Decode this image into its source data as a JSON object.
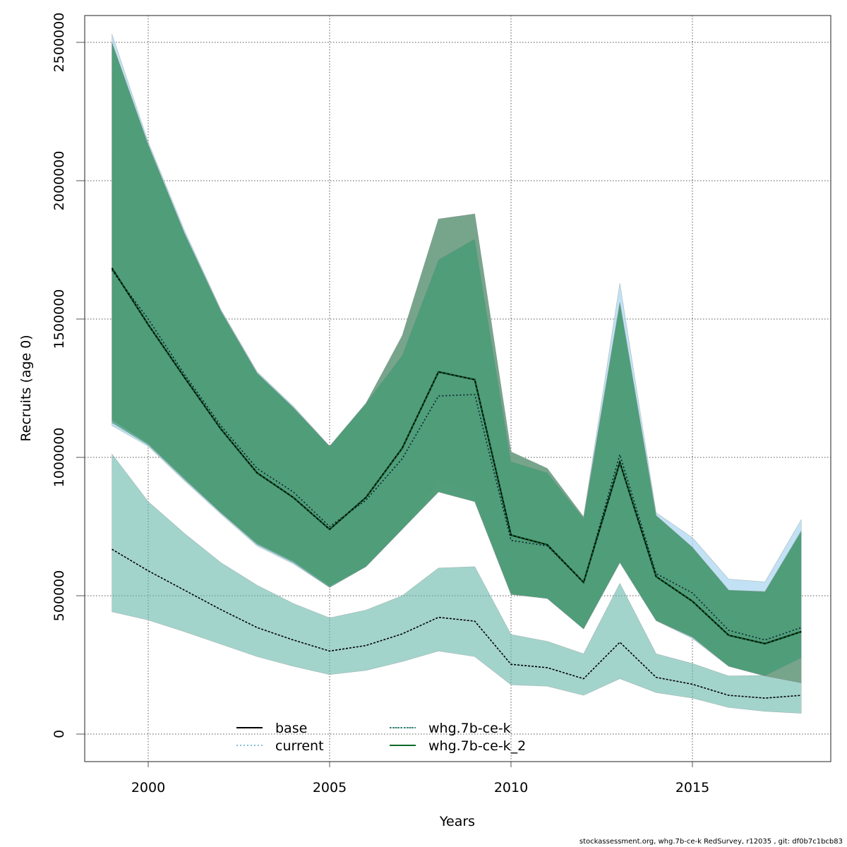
{
  "chart_data": {
    "type": "area",
    "title": "",
    "xlabel": "Years",
    "ylabel": "Recruits (age 0)",
    "xlim": [
      1998.2,
      2018.8
    ],
    "ylim": [
      -100000,
      2600000
    ],
    "grid": true,
    "x_ticks": [
      2000,
      2005,
      2010,
      2015
    ],
    "x_tick_labels": [
      "2000",
      "2005",
      "2010",
      "2015"
    ],
    "y_ticks": [
      0,
      500000,
      1000000,
      1500000,
      2000000,
      2500000
    ],
    "y_tick_labels": [
      "0",
      "500000",
      "1000000",
      "1500000",
      "2000000",
      "2500000"
    ],
    "x": [
      1999,
      2000,
      2001,
      2002,
      2003,
      2004,
      2005,
      2006,
      2007,
      2008,
      2009,
      2010,
      2011,
      2012,
      2013,
      2014,
      2015,
      2016,
      2017,
      2018
    ],
    "series": [
      {
        "name": "base",
        "line_style": "solid",
        "line_color": "#000000",
        "band_color": "#6a9a78",
        "values": [
          1684000,
          1480000,
          1289000,
          1103000,
          944000,
          855000,
          740000,
          855000,
          1033000,
          1309000,
          1281000,
          719000,
          684000,
          548000,
          982000,
          569000,
          480000,
          357000,
          327000,
          370000
        ],
        "upper": [
          2500000,
          2130000,
          1810000,
          1530000,
          1305000,
          1180000,
          1040000,
          1195000,
          1440000,
          1862000,
          1880000,
          1020000,
          960000,
          785000,
          1560000,
          790000,
          675000,
          520000,
          515000,
          730000
        ],
        "lower": [
          1135000,
          1050000,
          925000,
          800000,
          690000,
          625000,
          535000,
          605000,
          740000,
          875000,
          840000,
          505000,
          490000,
          380000,
          620000,
          410000,
          350000,
          245000,
          210000,
          185000
        ]
      },
      {
        "name": "current",
        "line_style": "dotted",
        "line_color": "#1a3a5a",
        "band_color": "#a8d4f0",
        "values": [
          1676000,
          1500000,
          1300000,
          1115000,
          960000,
          875000,
          750000,
          845000,
          995000,
          1222000,
          1227000,
          700000,
          680000,
          548000,
          1010000,
          580000,
          510000,
          375000,
          340000,
          385000
        ],
        "upper": [
          2530000,
          2140000,
          1820000,
          1535000,
          1310000,
          1185000,
          1040000,
          1195000,
          1435000,
          1860000,
          1880000,
          1020000,
          960000,
          785000,
          1630000,
          800000,
          710000,
          560000,
          550000,
          775000
        ],
        "lower": [
          1115000,
          1040000,
          915000,
          795000,
          680000,
          615000,
          530000,
          605000,
          740000,
          920000,
          870000,
          505000,
          490000,
          380000,
          620000,
          410000,
          345000,
          245000,
          210000,
          185000
        ]
      },
      {
        "name": "whg.7b-ce-k",
        "line_style": "dashed",
        "line_color": "#1f8a80",
        "band_color": "#66b8aa",
        "values": [
          668000,
          590000,
          520000,
          450000,
          385000,
          340000,
          300000,
          320000,
          362000,
          422000,
          408000,
          252000,
          240000,
          200000,
          332000,
          205000,
          180000,
          140000,
          130000,
          140000
        ],
        "upper": [
          1012000,
          840000,
          725000,
          620000,
          538000,
          472000,
          420000,
          448000,
          500000,
          600000,
          605000,
          360000,
          335000,
          290000,
          545000,
          290000,
          255000,
          210000,
          212000,
          185000
        ],
        "lower": [
          442000,
          412000,
          370000,
          325000,
          280000,
          245000,
          215000,
          230000,
          262000,
          300000,
          280000,
          178000,
          173000,
          140000,
          200000,
          150000,
          130000,
          96000,
          82000,
          75000
        ]
      },
      {
        "name": "whg.7b-ce-k_2",
        "line_style": "dashed",
        "line_color": "#0a5a20",
        "band_color": "#3e9a72",
        "values": [
          1684000,
          1480000,
          1289000,
          1103000,
          944000,
          855000,
          740000,
          855000,
          1033000,
          1309000,
          1281000,
          719000,
          684000,
          548000,
          982000,
          569000,
          480000,
          357000,
          327000,
          370000
        ],
        "upper": [
          2500000,
          2130000,
          1810000,
          1530000,
          1305000,
          1180000,
          1040000,
          1195000,
          1370000,
          1715000,
          1790000,
          985000,
          945000,
          780000,
          1560000,
          790000,
          675000,
          520000,
          515000,
          735000
        ],
        "lower": [
          1125000,
          1045000,
          920000,
          800000,
          685000,
          620000,
          530000,
          605000,
          740000,
          875000,
          840000,
          505000,
          490000,
          380000,
          620000,
          410000,
          350000,
          245000,
          210000,
          275000
        ]
      }
    ],
    "legend": {
      "placement": "bottom-center",
      "entries": [
        {
          "label": "base",
          "line_style": "solid",
          "color": "#000000"
        },
        {
          "label": "current",
          "line_style": "dotted",
          "color": "#5aa8d0"
        },
        {
          "label": "whg.7b-ce-k",
          "line_style": "dashed",
          "color": "#2aa898"
        },
        {
          "label": "whg.7b-ce-k_2",
          "line_style": "solid",
          "color": "#0a6a2a"
        }
      ]
    }
  },
  "footer": "stockassessment.org, whg.7b-ce-k  RedSurvey, r12035 , git: df0b7c1bcb83"
}
